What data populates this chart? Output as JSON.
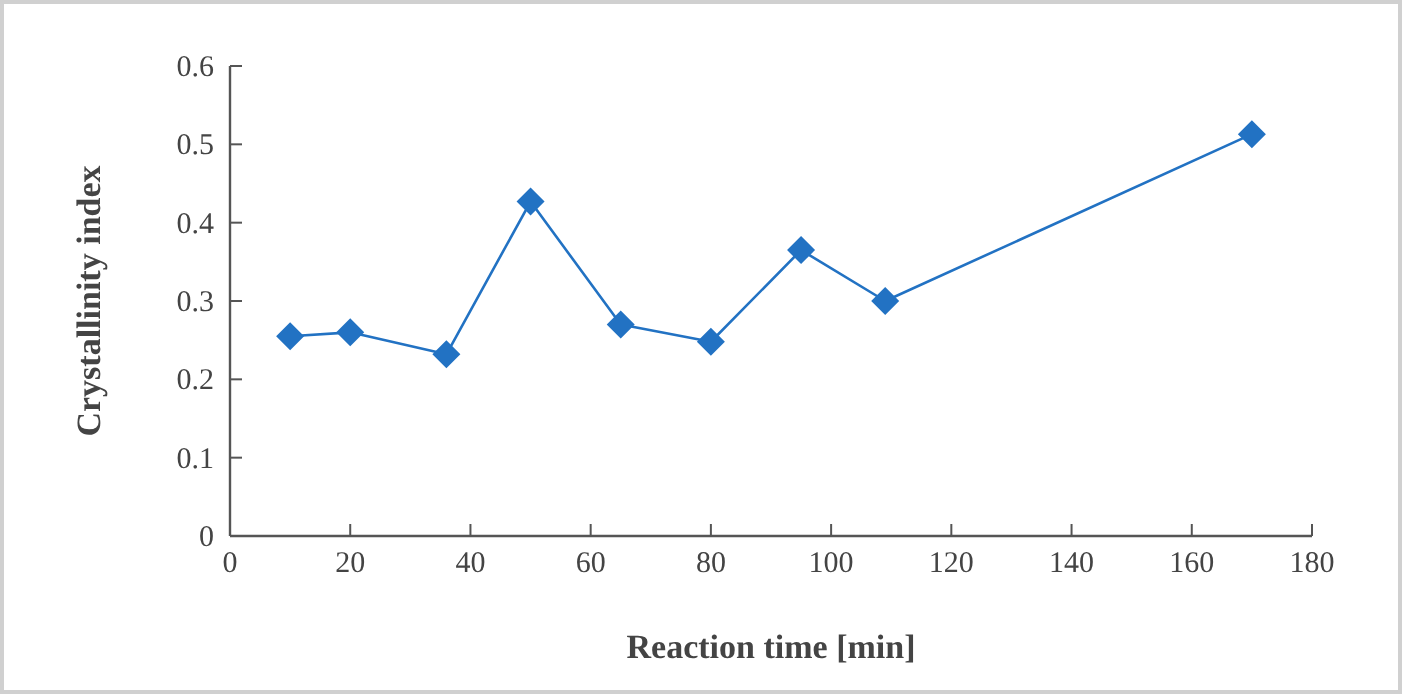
{
  "chart_data": {
    "type": "line",
    "xlabel": "Reaction time [min]",
    "ylabel": "Crystallinity index",
    "x": [
      10,
      20,
      36,
      50,
      65,
      80,
      95,
      109,
      170
    ],
    "series": [
      {
        "color": "#2272c3",
        "values": [
          0.255,
          0.26,
          0.232,
          0.427,
          0.27,
          0.248,
          0.365,
          0.3,
          0.513
        ]
      }
    ],
    "xlim": [
      0,
      180
    ],
    "xticks": [
      0,
      20,
      40,
      60,
      80,
      100,
      120,
      140,
      160,
      180
    ],
    "ylim": [
      0,
      0.6
    ],
    "yticks": [
      0,
      0.1,
      0.2,
      0.3,
      0.4,
      0.5,
      0.6
    ],
    "marker": "diamond",
    "line_style": "solid"
  }
}
